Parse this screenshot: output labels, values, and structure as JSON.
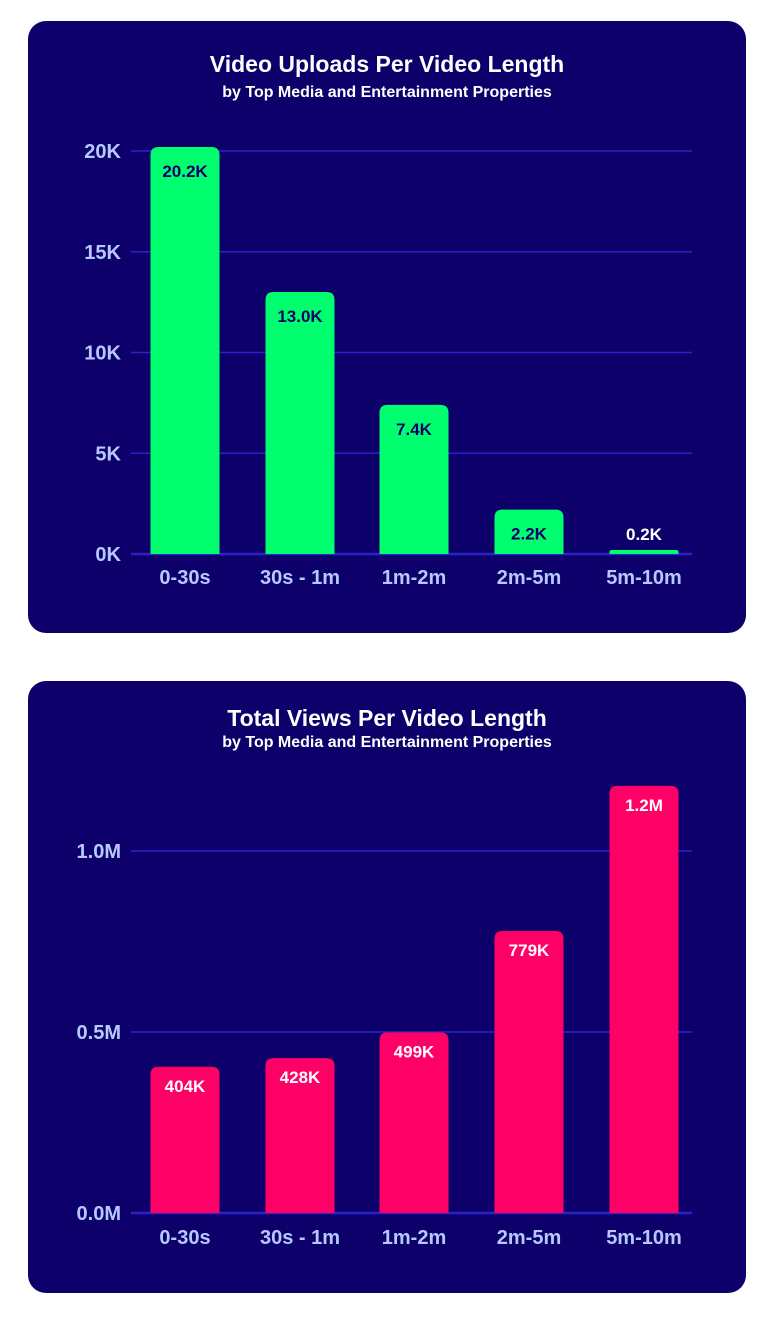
{
  "chart_data": [
    {
      "type": "bar",
      "title": "Video Uploads Per Video Length",
      "subtitle": "by Top Media and Entertainment Properties",
      "categories": [
        "0-30s",
        "30s - 1m",
        "1m-2m",
        "2m-5m",
        "5m-10m"
      ],
      "values": [
        20200,
        13000,
        7400,
        2200,
        200
      ],
      "data_labels": [
        "20.2K",
        "13.0K",
        "7.4K",
        "2.2K",
        "0.2K"
      ],
      "yticks": [
        0,
        5000,
        10000,
        15000,
        20000
      ],
      "ytick_labels": [
        "0K",
        "5K",
        "10K",
        "15K",
        "20K"
      ],
      "ylim": [
        0,
        20000
      ],
      "grid": true,
      "bar_color": "#00ff6e",
      "label_color": "#0e006b"
    },
    {
      "type": "bar",
      "title": "Total Views Per Video Length",
      "subtitle": "by Top Media and Entertainment Properties",
      "categories": [
        "0-30s",
        "30s - 1m",
        "1m-2m",
        "2m-5m",
        "5m-10m"
      ],
      "values": [
        404000,
        428000,
        499000,
        779000,
        1180000
      ],
      "data_labels": [
        "404K",
        "428K",
        "499K",
        "779K",
        "1.2M"
      ],
      "yticks": [
        0,
        500000,
        1000000
      ],
      "ytick_labels": [
        "0.0M",
        "0.5M",
        "1.0M"
      ],
      "ylim": [
        0,
        1000000
      ],
      "grid": true,
      "bar_color": "#ff0066",
      "label_color": "#ffffff"
    }
  ],
  "colors": {
    "panel_background": "#0e006b",
    "gridline": "#2a22c8",
    "axis_text": "#b6c9ff"
  }
}
